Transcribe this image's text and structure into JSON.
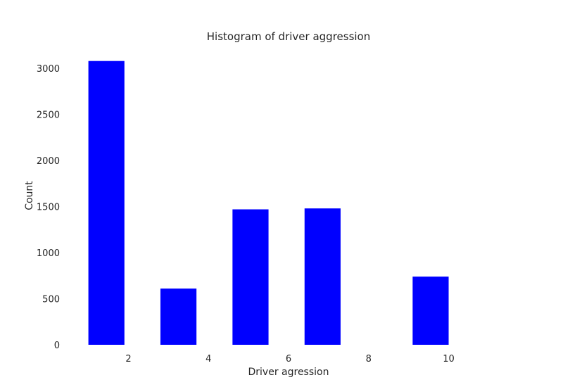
{
  "chart_data": {
    "type": "bar",
    "title": "Histogram of driver aggression",
    "xlabel": "Driver agression",
    "ylabel": "Count",
    "bar_color": "#0000ff",
    "background": "#ffffff",
    "grid": false,
    "xlim": [
      0.55,
      11.45
    ],
    "ylim": [
      0,
      3238
    ],
    "xticks": [
      2,
      4,
      6,
      8,
      10
    ],
    "yticks": [
      0,
      500,
      1000,
      1500,
      2000,
      2500,
      3000
    ],
    "bins": [
      {
        "x0": 1.0,
        "x1": 1.9,
        "count": 3080
      },
      {
        "x0": 2.8,
        "x1": 3.7,
        "count": 610
      },
      {
        "x0": 4.6,
        "x1": 5.5,
        "count": 1470
      },
      {
        "x0": 6.4,
        "x1": 7.3,
        "count": 1480
      },
      {
        "x0": 9.1,
        "x1": 10.0,
        "count": 740
      }
    ]
  }
}
